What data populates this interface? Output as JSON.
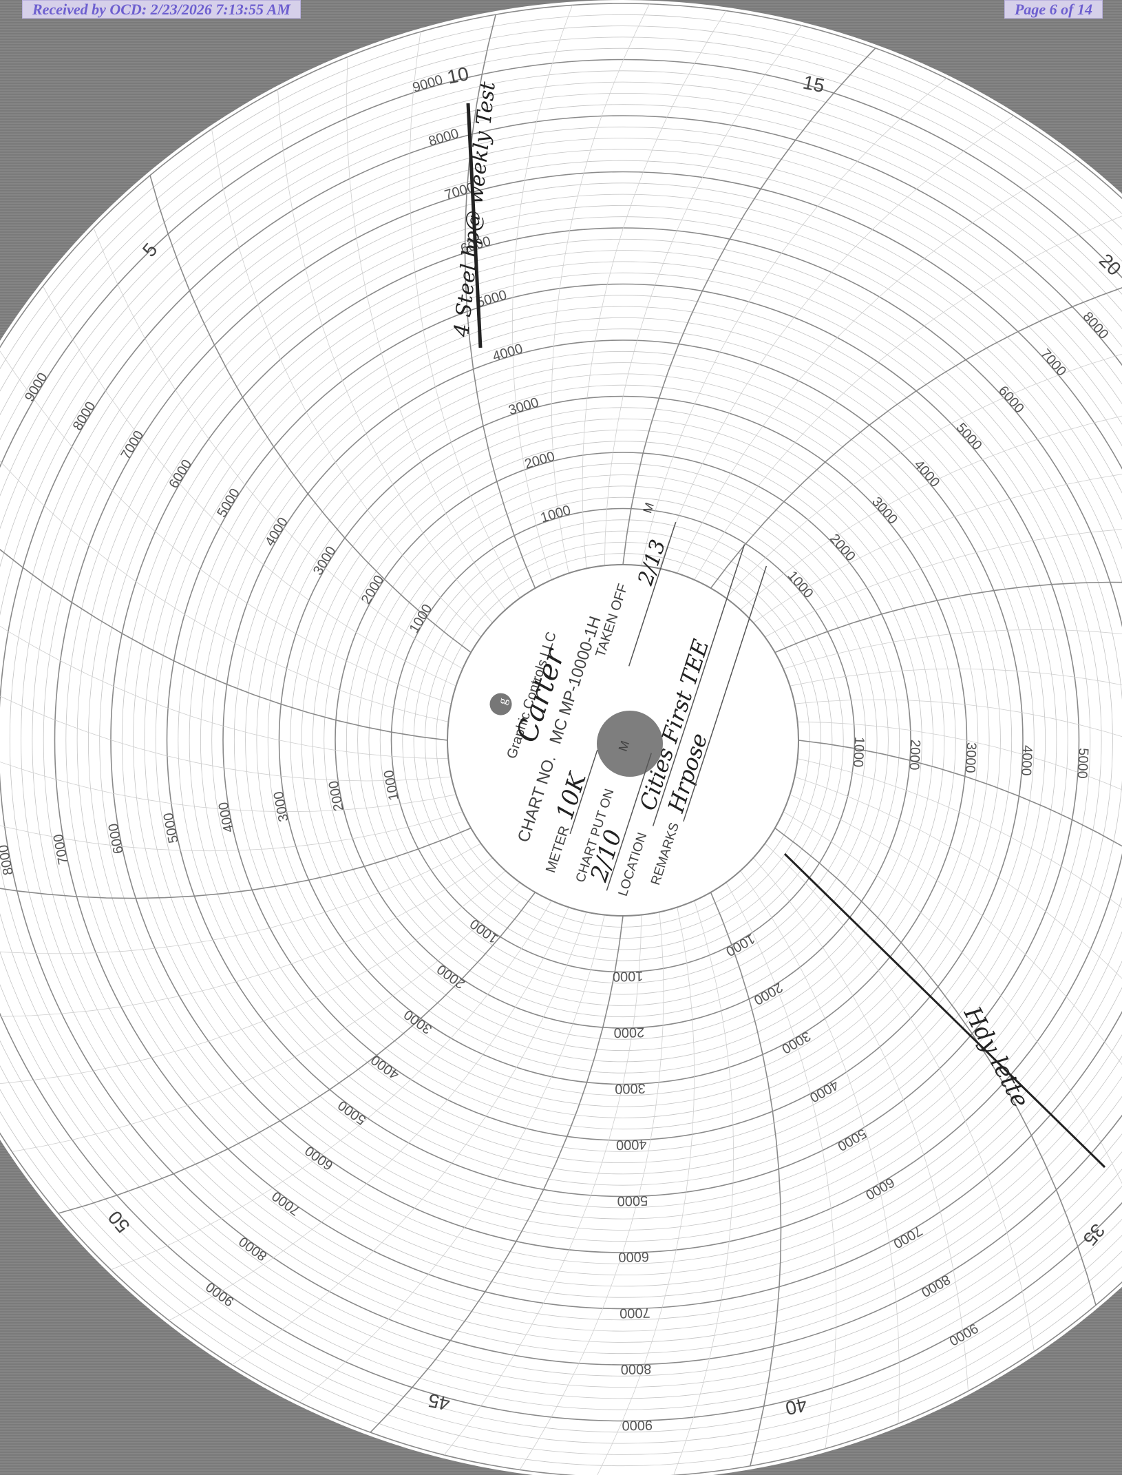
{
  "stamps": {
    "received": "Received by OCD: 2/23/2026 7:13:55 AM",
    "page": "Page 6 of 14"
  },
  "chart": {
    "rim_numbers": [
      "5",
      "10",
      "15",
      "20",
      "35",
      "40",
      "45",
      "50"
    ],
    "scale_values": [
      "1000",
      "2000",
      "3000",
      "4000",
      "5000",
      "6000",
      "7000",
      "8000",
      "9000"
    ],
    "brand": "Graphic Controls LLC",
    "chart_no_label": "CHART NO.",
    "chart_no_value": "MC MP-10000-1H",
    "company_handwritten": "Carter",
    "meter_label": "METER",
    "meter_value": "10K",
    "put_on_label": "CHART PUT ON",
    "put_on_m": "M",
    "put_on_value": "2/10",
    "taken_off_label": "TAKEN OFF",
    "taken_off_m": "M",
    "taken_off_value": "2/13",
    "location_label": "LOCATION",
    "location_value": "Cities First TEE",
    "remarks_label": "REMARKS",
    "remarks_value": "Hrpose",
    "annotation_top": "4 Steel bp@ weekly Test",
    "annotation_right": "Hdy lette"
  },
  "colors": {
    "stamp_text": "#6d5fcf",
    "stamp_bg": "#d6d0ea",
    "paper": "#ffffff",
    "grid_line": "#9a9a9a",
    "pen_trace": "#222222"
  }
}
